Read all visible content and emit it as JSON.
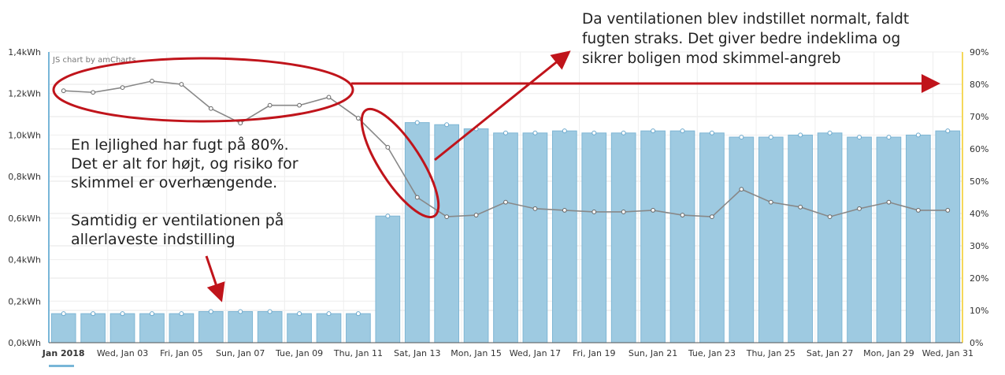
{
  "chart_data": {
    "type": "bar",
    "credit": "JS chart by amCharts",
    "x_labels": [
      "Jan 2018",
      "Wed, Jan 03",
      "Fri, Jan 05",
      "Sun, Jan 07",
      "Tue, Jan 09",
      "Thu, Jan 11",
      "Sat, Jan 13",
      "Mon, Jan 15",
      "Wed, Jan 17",
      "Fri, Jan 19",
      "Sun, Jan 21",
      "Tue, Jan 23",
      "Thu, Jan 25",
      "Sat, Jan 27",
      "Mon, Jan 29",
      "Wed, Jan 31"
    ],
    "x": [
      "2018-01-01",
      "2018-01-02",
      "2018-01-03",
      "2018-01-04",
      "2018-01-05",
      "2018-01-06",
      "2018-01-07",
      "2018-01-08",
      "2018-01-09",
      "2018-01-10",
      "2018-01-11",
      "2018-01-12",
      "2018-01-13",
      "2018-01-14",
      "2018-01-15",
      "2018-01-16",
      "2018-01-17",
      "2018-01-18",
      "2018-01-19",
      "2018-01-20",
      "2018-01-21",
      "2018-01-22",
      "2018-01-23",
      "2018-01-24",
      "2018-01-25",
      "2018-01-26",
      "2018-01-27",
      "2018-01-28",
      "2018-01-29",
      "2018-01-30",
      "2018-01-31"
    ],
    "y_left_ticks": [
      "0,0kWh",
      "0,2kWh",
      "0,4kWh",
      "0,6kWh",
      "0,8kWh",
      "1,0kWh",
      "1,2kWh",
      "1,4kWh"
    ],
    "y_right_ticks": [
      "0%",
      "10%",
      "20%",
      "30%",
      "40%",
      "50%",
      "60%",
      "70%",
      "80%",
      "90%"
    ],
    "y_left_range": [
      0,
      1.4
    ],
    "y_right_range": [
      0,
      90
    ],
    "grid": true,
    "series": [
      {
        "type": "bar",
        "axis": "left",
        "values": [
          0.14,
          0.14,
          0.14,
          0.14,
          0.14,
          0.15,
          0.15,
          0.15,
          0.14,
          0.14,
          0.14,
          0.61,
          1.06,
          1.05,
          1.03,
          1.01,
          1.01,
          1.02,
          1.01,
          1.01,
          1.02,
          1.02,
          1.01,
          0.99,
          0.99,
          1.0,
          1.01,
          0.99,
          0.99,
          1.0,
          1.02
        ],
        "color": "#9ecae1",
        "border": "#7fb6d4"
      },
      {
        "type": "line",
        "axis": "right",
        "values": [
          78,
          77.5,
          79,
          81,
          80,
          72.5,
          68,
          73.5,
          73.5,
          76,
          69.5,
          60.5,
          45,
          39,
          39.5,
          43.5,
          41.5,
          41,
          40.5,
          40.5,
          41,
          39.5,
          39,
          47.5,
          43.5,
          42,
          39,
          41.5,
          43.5,
          41,
          41
        ],
        "color": "#888888"
      }
    ],
    "annotations": {
      "top": "Da ventilationen blev indstillet normalt, faldt\nfugten straks. Det giver bedre indeklima og\nsikrer boligen mod skimmel-angreb",
      "left": "En lejlighed har fugt på 80%.\nDet er alt for højt, og risiko for\nskimmel er overhængende.",
      "ventilation": "Samtidig er ventilationen på\nallerlaveste indstilling"
    },
    "annotation_color": "#c0141b",
    "right_axis_color": "#f5d85a",
    "left_axis_color": "#78b6d8"
  }
}
